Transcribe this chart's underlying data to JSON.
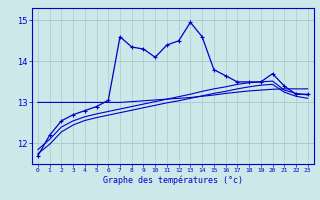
{
  "xlabel": "Graphe des températures (°c)",
  "bg_color": "#cce8e8",
  "grid_color": "#aacccc",
  "line_color": "#0000cc",
  "hours": [
    0,
    1,
    2,
    3,
    4,
    5,
    6,
    7,
    8,
    9,
    10,
    11,
    12,
    13,
    14,
    15,
    16,
    17,
    18,
    19,
    20,
    21,
    22,
    23
  ],
  "series1": [
    11.7,
    12.2,
    12.55,
    12.7,
    12.8,
    12.9,
    13.05,
    14.6,
    14.35,
    14.3,
    14.1,
    14.4,
    14.5,
    14.95,
    14.6,
    13.8,
    13.65,
    13.5,
    13.5,
    13.5,
    13.7,
    13.4,
    13.2,
    13.2
  ],
  "series2": [
    13.0,
    13.0,
    13.0,
    13.0,
    13.0,
    13.0,
    13.0,
    13.0,
    13.02,
    13.04,
    13.06,
    13.08,
    13.1,
    13.12,
    13.15,
    13.18,
    13.22,
    13.25,
    13.28,
    13.3,
    13.32,
    13.33,
    13.33,
    13.33
  ],
  "series3": [
    11.85,
    12.1,
    12.4,
    12.55,
    12.65,
    12.72,
    12.78,
    12.84,
    12.9,
    12.96,
    13.02,
    13.08,
    13.14,
    13.2,
    13.27,
    13.33,
    13.38,
    13.44,
    13.48,
    13.5,
    13.52,
    13.3,
    13.22,
    13.18
  ],
  "series4": [
    11.75,
    11.98,
    12.28,
    12.45,
    12.56,
    12.63,
    12.69,
    12.75,
    12.81,
    12.87,
    12.93,
    12.99,
    13.04,
    13.1,
    13.16,
    13.22,
    13.27,
    13.33,
    13.38,
    13.42,
    13.44,
    13.25,
    13.15,
    13.1
  ],
  "ylim_min": 11.5,
  "ylim_max": 15.3,
  "yticks": [
    12,
    13,
    14,
    15
  ],
  "xtick_labels": [
    "0",
    "1",
    "2",
    "3",
    "4",
    "5",
    "6",
    "7",
    "8",
    "9",
    "10",
    "11",
    "12",
    "13",
    "14",
    "15",
    "16",
    "17",
    "18",
    "19",
    "20",
    "21",
    "22",
    "23"
  ]
}
